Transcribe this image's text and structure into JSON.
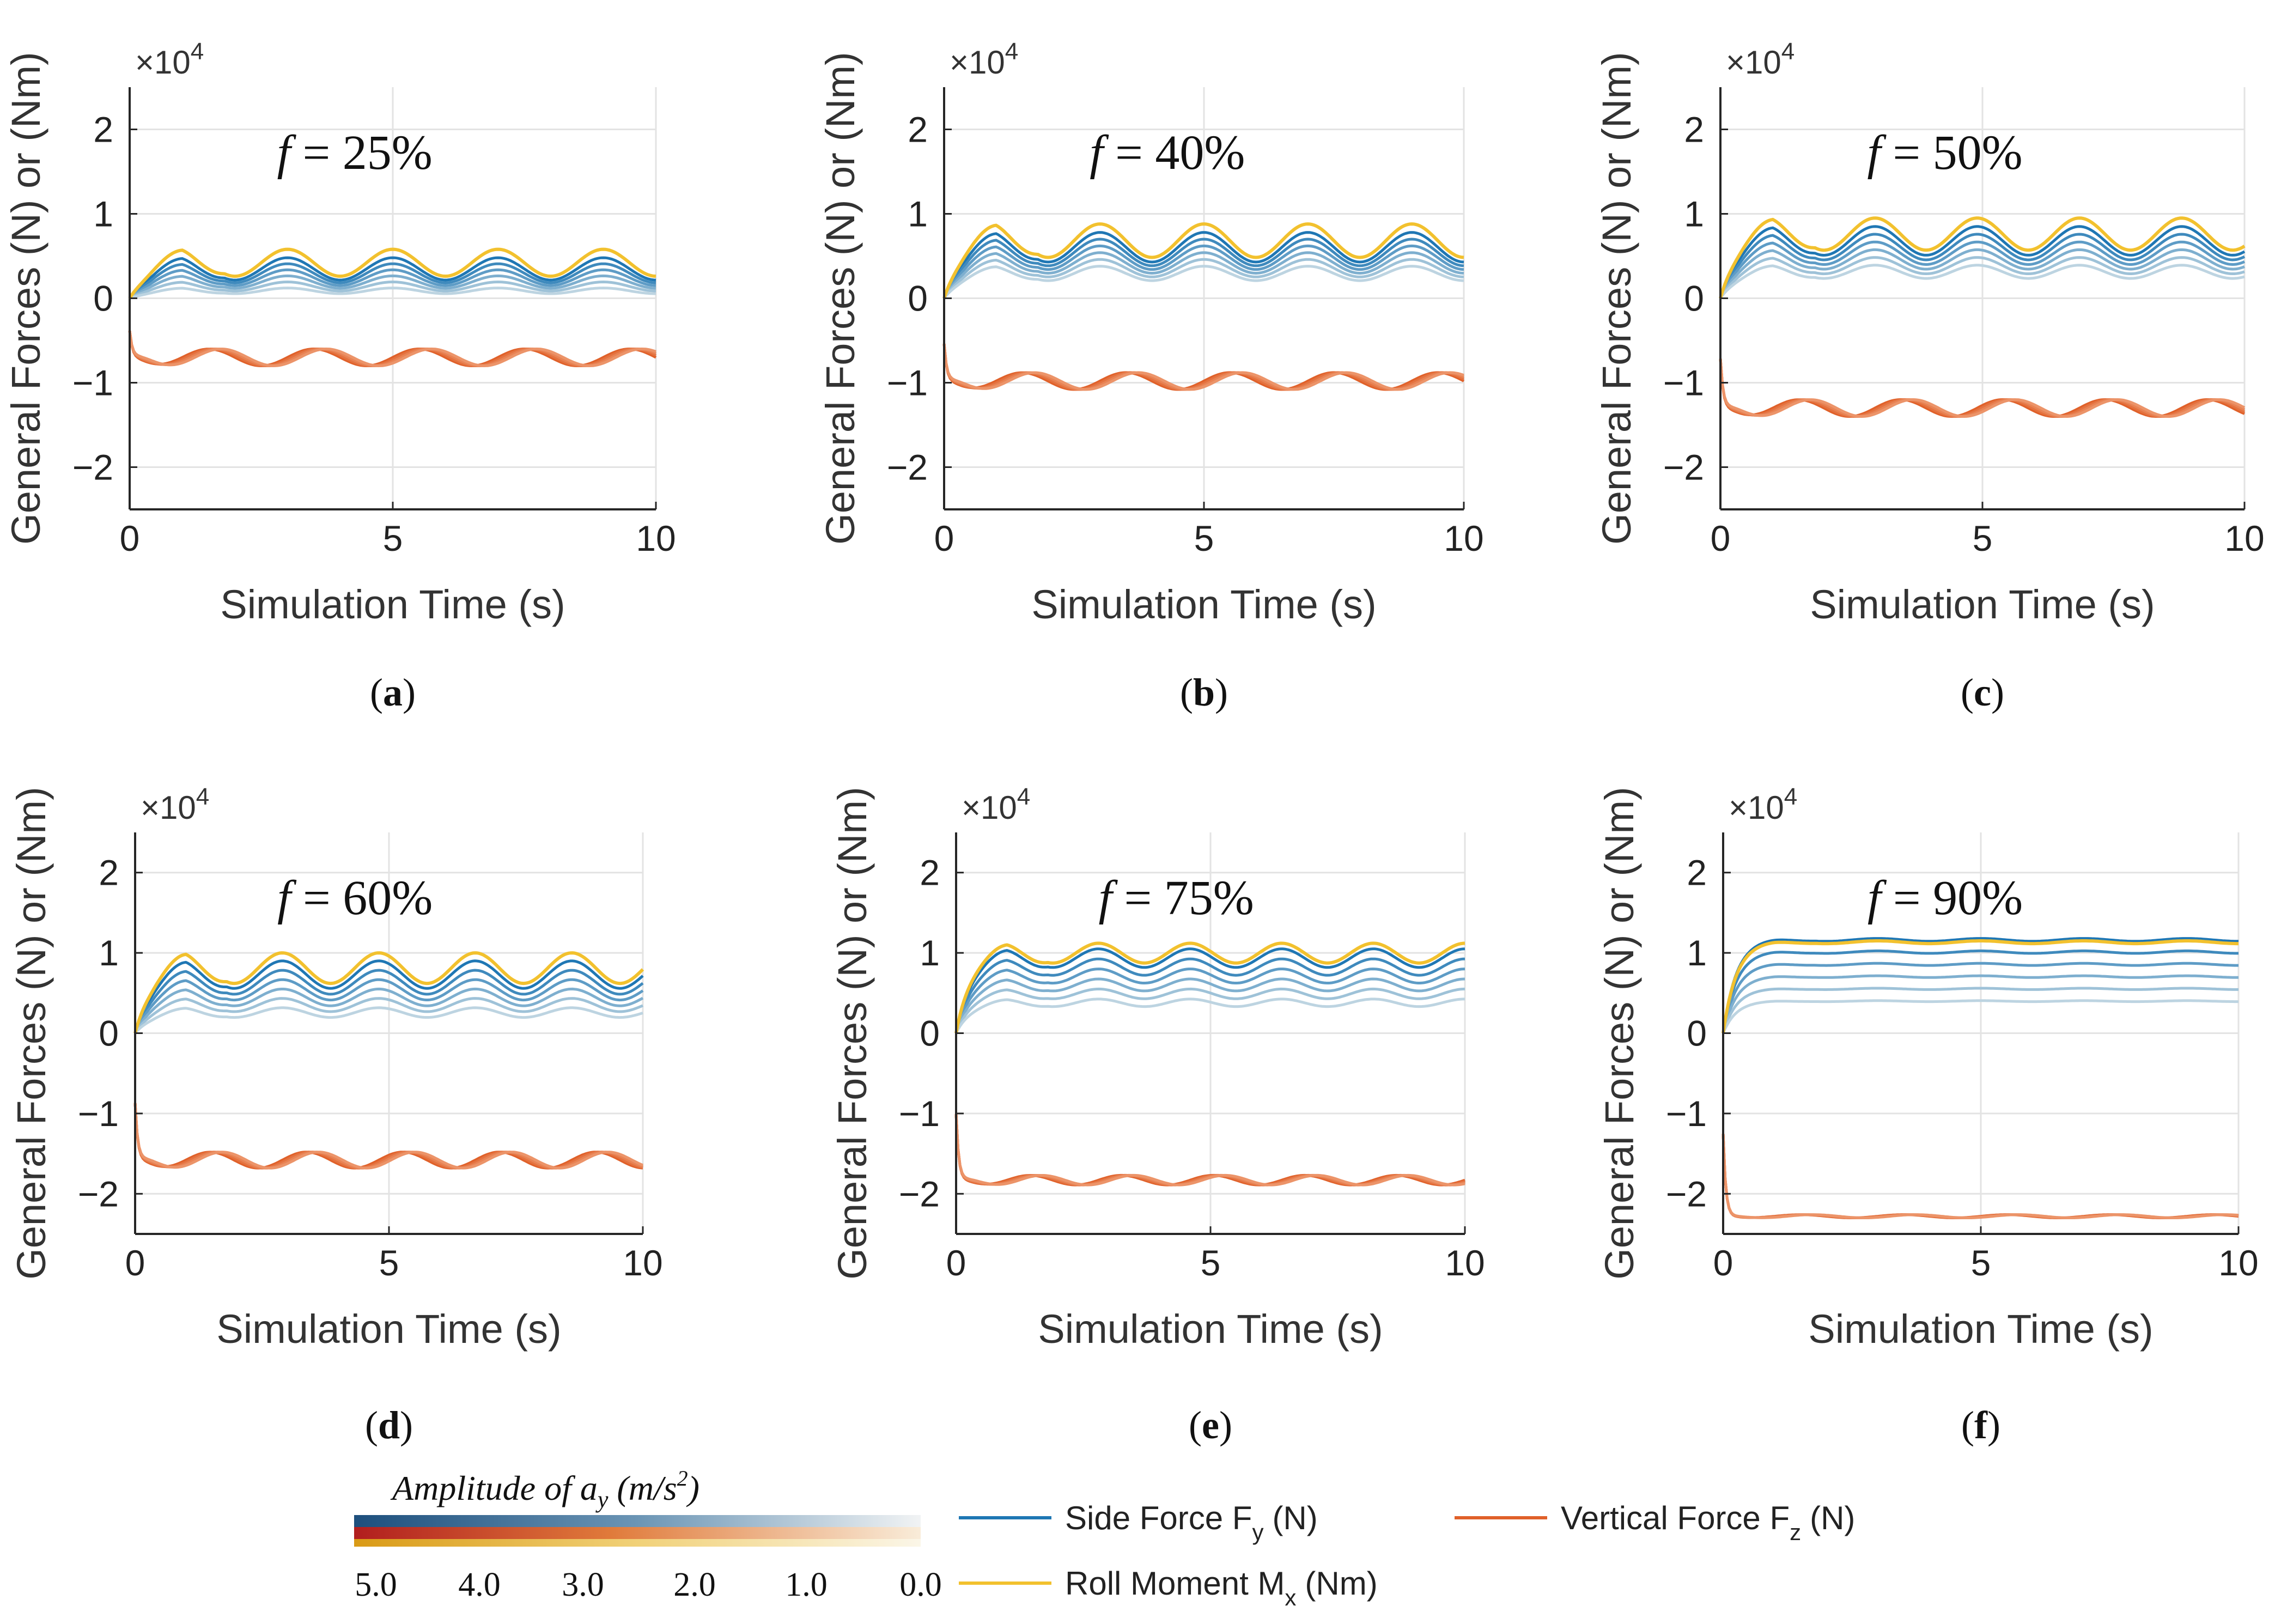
{
  "common": {
    "ylabel": "General Forces (N) or (Nm)",
    "xlabel": "Simulation Time (s)",
    "exponent_base": "×10",
    "exponent_power": "4",
    "xticks": [
      0,
      5,
      10
    ],
    "yticks": [
      -2,
      -1,
      0,
      1,
      2
    ],
    "ylim": [
      -2.5,
      2.5
    ],
    "xlim": [
      0,
      10
    ]
  },
  "chart_data": [
    {
      "id": "a",
      "type": "line",
      "caption_letter": "a",
      "annotation_var": "f",
      "annotation_value": "= 25%",
      "title": "f = 25%",
      "xlabel": "Simulation Time (s)",
      "ylabel": "General Forces (N) or (Nm)",
      "fy_max": 0.48,
      "fy_base": 0.05,
      "mx_max": 0.58,
      "fz_level": -0.7,
      "fz_amp": 0.1,
      "period": 2.0,
      "osc": 0.55
    },
    {
      "id": "b",
      "type": "line",
      "caption_letter": "b",
      "annotation_var": "f",
      "annotation_value": "= 40%",
      "title": "f = 40%",
      "xlabel": "Simulation Time (s)",
      "ylabel": "General Forces (N) or (Nm)",
      "fy_max": 0.78,
      "fy_base": 0.3,
      "mx_max": 0.88,
      "fz_level": -0.98,
      "fz_amp": 0.1,
      "period": 2.0,
      "osc": 0.45
    },
    {
      "id": "c",
      "type": "line",
      "caption_letter": "c",
      "annotation_var": "f",
      "annotation_value": "= 50%",
      "title": "f = 50%",
      "xlabel": "Simulation Time (s)",
      "ylabel": "General Forces (N) or (Nm)",
      "fy_max": 0.85,
      "fy_base": 0.3,
      "mx_max": 0.95,
      "fz_level": -1.3,
      "fz_amp": 0.1,
      "period": 1.95,
      "osc": 0.4
    },
    {
      "id": "d",
      "type": "line",
      "caption_letter": "d",
      "annotation_var": "f",
      "annotation_value": "= 60%",
      "title": "f = 60%",
      "xlabel": "Simulation Time (s)",
      "ylabel": "General Forces (N) or (Nm)",
      "fy_max": 0.9,
      "fy_base": 0.2,
      "mx_max": 1.0,
      "fz_level": -1.58,
      "fz_amp": 0.1,
      "period": 1.9,
      "osc": 0.38
    },
    {
      "id": "e",
      "type": "line",
      "caption_letter": "e",
      "annotation_var": "f",
      "annotation_value": "= 75%",
      "title": "f = 75%",
      "xlabel": "Simulation Time (s)",
      "ylabel": "General Forces (N) or (Nm)",
      "fy_max": 1.05,
      "fy_base": 0.3,
      "mx_max": 1.12,
      "fz_level": -1.83,
      "fz_amp": 0.06,
      "period": 1.8,
      "osc": 0.22
    },
    {
      "id": "f",
      "type": "line",
      "caption_letter": "f",
      "annotation_var": "f",
      "annotation_value": "= 90%",
      "title": "f = 90%",
      "xlabel": "Simulation Time (s)",
      "ylabel": "General Forces (N) or (Nm)",
      "fy_max": 1.18,
      "fy_base": 0.25,
      "mx_max": 1.15,
      "fz_level": -2.28,
      "fz_amp": 0.02,
      "period": 2.0,
      "osc": 0.03
    }
  ],
  "legend": {
    "colorbar_title": "Amplitude of a",
    "colorbar_title_sub": "y",
    "colorbar_units": "(m/s",
    "colorbar_units_sup": "2",
    "colorbar_units_close": ")",
    "colorbar_ticks": [
      "5.0",
      "4.0",
      "3.0",
      "2.0",
      "1.0",
      "0.0"
    ],
    "side_force": "Side Force F",
    "side_force_sub": "y",
    "side_force_unit": "(N)",
    "vertical_force": "Vertical Force F",
    "vertical_force_sub": "z",
    "vertical_force_unit": "(N)",
    "roll_moment": "Roll Moment M",
    "roll_moment_sub": "x",
    "roll_moment_unit": "(Nm)"
  },
  "colors": {
    "side_force": "#1f77b4",
    "vertical_force": "#e0612a",
    "roll_moment": "#f2c12e",
    "grid": "#e3e3e3",
    "axis": "#262626"
  }
}
